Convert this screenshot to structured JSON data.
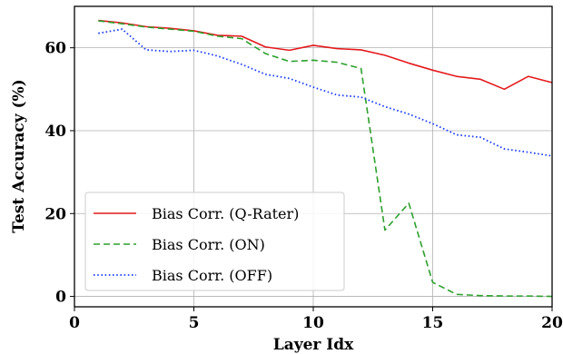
{
  "chart_data": {
    "type": "line",
    "xlabel": "Layer Idx",
    "ylabel": "Test Accuracy (%)",
    "xlim": [
      0,
      20
    ],
    "ylim": [
      -2.5,
      70
    ],
    "xticks": [
      0,
      5,
      10,
      15,
      20
    ],
    "yticks": [
      0,
      20,
      40,
      60
    ],
    "grid": true,
    "legend_position": "lower-left",
    "x": [
      1,
      2,
      3,
      4,
      5,
      6,
      7,
      8,
      9,
      10,
      11,
      12,
      13,
      14,
      15,
      16,
      17,
      18,
      19,
      20
    ],
    "series": [
      {
        "name": "Bias Corr. (Q-Rater)",
        "color": "#e41a1c",
        "style": "solid",
        "values": [
          66.6,
          66.0,
          65.1,
          64.7,
          64.1,
          63.0,
          62.8,
          60.2,
          59.4,
          60.6,
          59.8,
          59.5,
          58.2,
          56.3,
          54.6,
          53.1,
          52.4,
          50.0,
          53.1,
          51.6
        ]
      },
      {
        "name": "Bias Corr. (ON)",
        "color": "#2ca02c",
        "style": "dashed",
        "values": [
          66.5,
          65.8,
          65.0,
          64.5,
          64.0,
          62.8,
          62.2,
          58.6,
          56.7,
          57.0,
          56.5,
          55.0,
          16.0,
          22.5,
          3.4,
          0.5,
          0.2,
          0.1,
          0.1,
          0.0
        ]
      },
      {
        "name": "Bias Corr. (OFF)",
        "color": "#1f3fff",
        "style": "dotted",
        "values": [
          63.5,
          64.5,
          59.5,
          59.1,
          59.4,
          58.0,
          56.0,
          53.6,
          52.6,
          50.5,
          48.6,
          48.1,
          45.8,
          44.0,
          41.7,
          39.0,
          38.4,
          35.6,
          34.8,
          33.9
        ]
      }
    ]
  }
}
